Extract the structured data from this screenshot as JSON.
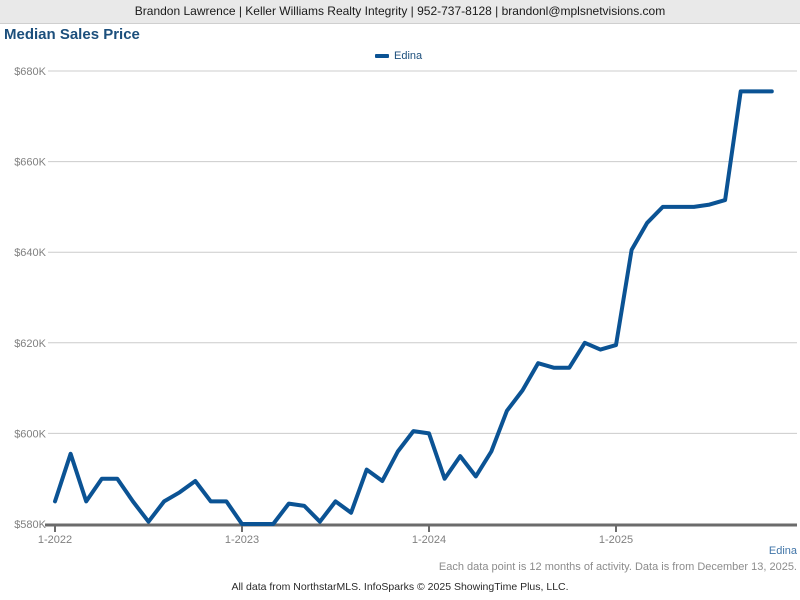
{
  "header": {
    "contact_line": "Brandon Lawrence | Keller Williams Realty Integrity | 952-737-8128 | brandonl@mplsnetvisions.com"
  },
  "title": "Median Sales Price",
  "legend": {
    "label": "Edina"
  },
  "footer": {
    "series_label": "Edina",
    "note": "Each data point is 12 months of activity. Data is from December 13, 2025.",
    "attribution": "All data from NorthstarMLS. InfoSparks © 2025 ShowingTime Plus, LLC."
  },
  "colors": {
    "line": "#0b5394",
    "title_blue": "#1c4f7c",
    "header_bg": "#e9e9e9",
    "gridline": "#cccccc",
    "axis": "#6b6b6b",
    "tick_label": "#808080",
    "series_label_blue": "#4175a8",
    "note_gray": "#8c8c8c"
  },
  "chart_data": {
    "type": "line",
    "title": "Median Sales Price",
    "series": [
      {
        "name": "Edina",
        "values": [
          585,
          595.5,
          585,
          590,
          590,
          585,
          580.5,
          585,
          587,
          589.5,
          585,
          585,
          580,
          580,
          580,
          584.5,
          584,
          580.5,
          585,
          582.5,
          592,
          589.5,
          596,
          600.5,
          600,
          590,
          595,
          590.5,
          596,
          605,
          609.5,
          615.5,
          614.5,
          614.5,
          620,
          618.5,
          619.5,
          640.5,
          646.5,
          650,
          650,
          650,
          650.5,
          651.5,
          675.5,
          675.5,
          675.5
        ]
      }
    ],
    "x": [
      "1-2022",
      "2-2022",
      "3-2022",
      "4-2022",
      "5-2022",
      "6-2022",
      "7-2022",
      "8-2022",
      "9-2022",
      "10-2022",
      "11-2022",
      "12-2022",
      "1-2023",
      "2-2023",
      "3-2023",
      "4-2023",
      "5-2023",
      "6-2023",
      "7-2023",
      "8-2023",
      "9-2023",
      "10-2023",
      "11-2023",
      "12-2023",
      "1-2024",
      "2-2024",
      "3-2024",
      "4-2024",
      "5-2024",
      "6-2024",
      "7-2024",
      "8-2024",
      "9-2024",
      "10-2024",
      "11-2024",
      "12-2024",
      "1-2025",
      "2-2025",
      "3-2025",
      "4-2025",
      "5-2025",
      "6-2025",
      "7-2025",
      "8-2025",
      "9-2025",
      "10-2025",
      "11-2025"
    ],
    "unit": "USD thousands",
    "ylim": [
      580,
      680
    ],
    "y_ticks": [
      580,
      600,
      620,
      640,
      660,
      680
    ],
    "y_tick_labels": [
      "$580K",
      "$600K",
      "$620K",
      "$640K",
      "$660K",
      "$680K"
    ],
    "x_tick_labels": [
      "1-2022",
      "1-2023",
      "1-2024",
      "1-2025"
    ],
    "x_tick_indices": [
      0,
      12,
      24,
      36
    ],
    "grid": true,
    "legend_position": "top-center"
  }
}
